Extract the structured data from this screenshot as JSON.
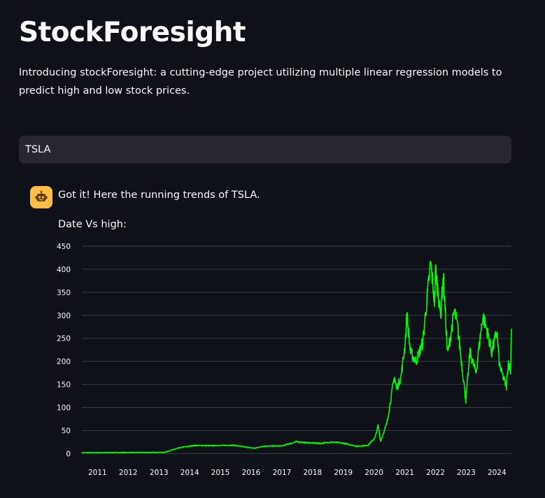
{
  "app": {
    "title": "StockForesight",
    "intro": "Introducing stockForesight: a cutting-edge project utilizing multiple linear regression models to predict high and low stock prices."
  },
  "chat": {
    "input_value": "TSLA",
    "assistant_icon": "robot-icon",
    "assistant_message": "Got it! Here the running trends of TSLA.",
    "chart_caption": "Date Vs high:"
  },
  "colors": {
    "background": "#0e1117",
    "input_bg": "#262730",
    "avatar_bg": "#ffbd45",
    "line": "#00ff00"
  },
  "chart_data": {
    "type": "line",
    "title": "",
    "xlabel": "",
    "ylabel": "",
    "x_ticks": [
      "2011",
      "2012",
      "2013",
      "2014",
      "2015",
      "2016",
      "2017",
      "2018",
      "2019",
      "2020",
      "2021",
      "2022",
      "2023",
      "2024"
    ],
    "y_ticks": [
      0,
      50,
      100,
      150,
      200,
      250,
      300,
      350,
      400,
      450
    ],
    "ylim": [
      -7,
      450
    ],
    "xlim": [
      "2010-06-29",
      "2024-06-21"
    ],
    "grid": true,
    "series": [
      {
        "x": [
          "2010-06-29",
          "2011-06-01",
          "2012-06-01",
          "2013-03-01",
          "2013-05-15",
          "2013-09-01",
          "2014-02-20",
          "2014-09-01",
          "2015-06-01",
          "2016-02-10",
          "2016-06-01",
          "2017-01-01",
          "2017-06-20",
          "2017-09-15",
          "2018-04-01",
          "2018-08-07",
          "2019-01-01",
          "2019-06-01",
          "2019-10-20",
          "2020-01-15",
          "2020-02-19",
          "2020-03-18",
          "2020-06-01",
          "2020-08-31",
          "2020-09-23",
          "2020-11-15",
          "2020-12-31",
          "2021-01-26",
          "2021-03-08",
          "2021-05-15",
          "2021-08-01",
          "2021-11-04",
          "2021-12-20",
          "2022-01-03",
          "2022-03-01",
          "2022-04-04",
          "2022-05-24",
          "2022-08-15",
          "2022-09-20",
          "2022-12-27",
          "2023-02-15",
          "2023-04-26",
          "2023-07-18",
          "2023-09-15",
          "2023-10-31",
          "2023-12-31",
          "2024-02-01",
          "2024-04-22",
          "2024-05-15",
          "2024-06-11",
          "2024-06-21"
        ],
        "y": [
          1.7,
          2.0,
          2.3,
          2.5,
          6.5,
          12.5,
          17.5,
          17,
          18,
          11.5,
          16,
          16.5,
          25.5,
          24,
          22,
          25,
          22.5,
          16,
          17.5,
          35,
          61,
          27,
          65,
          168,
          140,
          165,
          230,
          300,
          220,
          200,
          240,
          414,
          330,
          400,
          300,
          385,
          215,
          310,
          275,
          115,
          220,
          175,
          300,
          260,
          220,
          265,
          190,
          145,
          200,
          180,
          271
        ]
      }
    ]
  }
}
